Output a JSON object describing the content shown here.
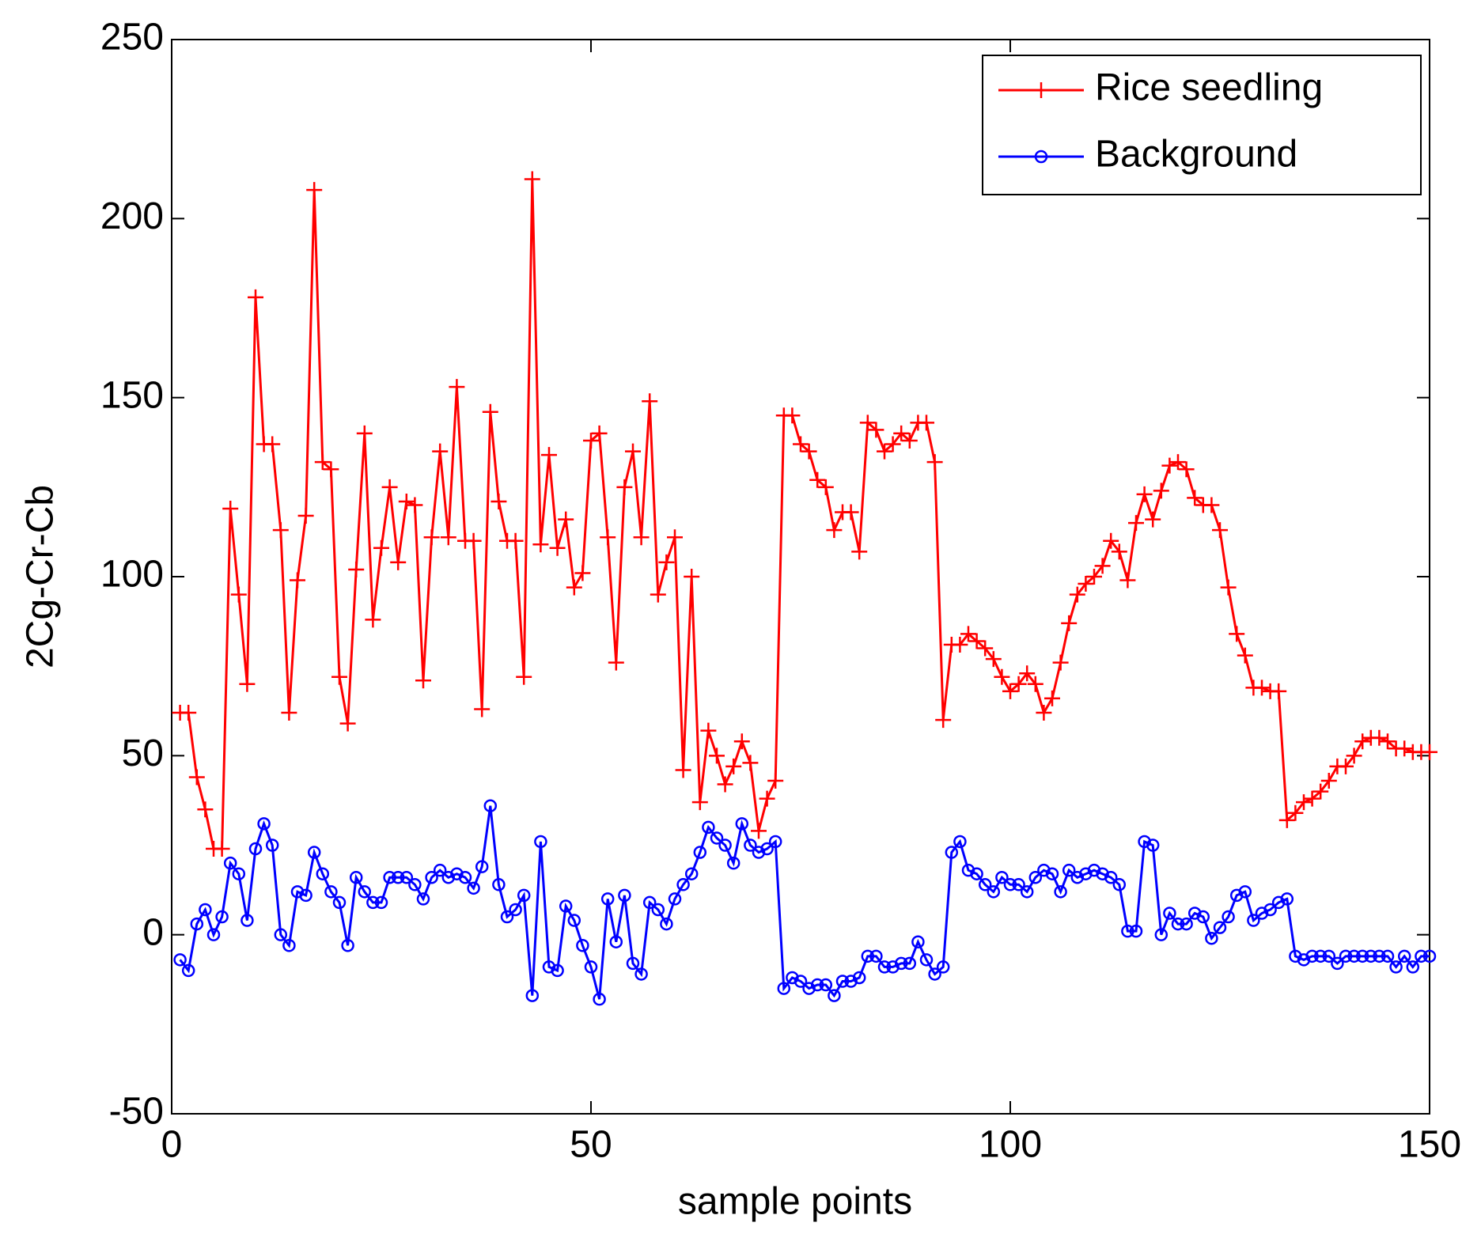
{
  "chart_data": {
    "type": "line",
    "xlabel": "sample points",
    "ylabel": "2Cg-Cr-Cb",
    "xlim": [
      0,
      150
    ],
    "ylim": [
      -50,
      250
    ],
    "xticks": [
      0,
      50,
      100,
      150
    ],
    "yticks": [
      -50,
      0,
      50,
      100,
      150,
      200,
      250
    ],
    "legend": "upper right",
    "x": [
      1,
      2,
      3,
      4,
      5,
      6,
      7,
      8,
      9,
      10,
      11,
      12,
      13,
      14,
      15,
      16,
      17,
      18,
      19,
      20,
      21,
      22,
      23,
      24,
      25,
      26,
      27,
      28,
      29,
      30,
      31,
      32,
      33,
      34,
      35,
      36,
      37,
      38,
      39,
      40,
      41,
      42,
      43,
      44,
      45,
      46,
      47,
      48,
      49,
      50,
      51,
      52,
      53,
      54,
      55,
      56,
      57,
      58,
      59,
      60,
      61,
      62,
      63,
      64,
      65,
      66,
      67,
      68,
      69,
      70,
      71,
      72,
      73,
      74,
      75,
      76,
      77,
      78,
      79,
      80,
      81,
      82,
      83,
      84,
      85,
      86,
      87,
      88,
      89,
      90,
      91,
      92,
      93,
      94,
      95,
      96,
      97,
      98,
      99,
      100,
      101,
      102,
      103,
      104,
      105,
      106,
      107,
      108,
      109,
      110,
      111,
      112,
      113,
      114,
      115,
      116,
      117,
      118,
      119,
      120,
      121,
      122,
      123,
      124,
      125,
      126,
      127,
      128,
      129,
      130,
      131,
      132,
      133,
      134,
      135,
      136,
      137,
      138,
      139,
      140,
      141,
      142,
      143,
      144,
      145,
      146,
      147,
      148,
      149,
      150
    ],
    "series": [
      {
        "name": "Rice seedling",
        "color": "#ff0000",
        "marker": "+",
        "values": [
          62,
          62,
          44,
          35,
          24,
          24,
          119,
          95,
          70,
          178,
          137,
          137,
          113,
          62,
          99,
          117,
          208,
          132,
          130,
          72,
          59,
          102,
          140,
          88,
          108,
          125,
          104,
          121,
          120,
          71,
          111,
          135,
          111,
          153,
          110,
          110,
          63,
          146,
          121,
          110,
          110,
          72,
          211,
          109,
          134,
          108,
          116,
          97,
          101,
          138,
          140,
          111,
          76,
          125,
          135,
          111,
          149,
          95,
          104,
          111,
          46,
          100,
          37,
          57,
          50,
          42,
          47,
          54,
          48,
          29,
          38,
          43,
          145,
          145,
          137,
          135,
          127,
          125,
          113,
          118,
          118,
          107,
          143,
          141,
          135,
          137,
          140,
          138,
          143,
          143,
          132,
          60,
          81,
          81,
          84,
          82,
          80,
          77,
          72,
          68,
          70,
          73,
          70,
          62,
          66,
          76,
          87,
          95,
          98,
          100,
          103,
          110,
          107,
          99,
          115,
          123,
          116,
          124,
          131,
          132,
          130,
          122,
          120,
          120,
          113,
          97,
          84,
          78,
          69,
          69,
          68,
          68,
          32,
          34,
          37,
          38,
          40,
          43,
          47,
          47,
          50,
          54,
          55,
          55,
          54,
          52,
          52,
          51,
          51,
          51
        ]
      },
      {
        "name": "Background",
        "color": "#0000ff",
        "marker": "o",
        "values": [
          -7,
          -10,
          3,
          7,
          0,
          5,
          20,
          17,
          4,
          24,
          31,
          25,
          0,
          -3,
          12,
          11,
          23,
          17,
          12,
          9,
          -3,
          16,
          12,
          9,
          9,
          16,
          16,
          16,
          14,
          10,
          16,
          18,
          16,
          17,
          16,
          13,
          19,
          36,
          14,
          5,
          7,
          11,
          -17,
          26,
          -9,
          -10,
          8,
          4,
          -3,
          -9,
          -18,
          10,
          -2,
          11,
          -8,
          -11,
          9,
          7,
          3,
          10,
          14,
          17,
          23,
          30,
          27,
          25,
          20,
          31,
          25,
          23,
          24,
          26,
          -15,
          -12,
          -13,
          -15,
          -14,
          -14,
          -17,
          -13,
          -13,
          -12,
          -6,
          -6,
          -9,
          -9,
          -8,
          -8,
          -2,
          -7,
          -11,
          -9,
          23,
          26,
          18,
          17,
          14,
          12,
          16,
          14,
          14,
          12,
          16,
          18,
          17,
          12,
          18,
          16,
          17,
          18,
          17,
          16,
          14,
          1,
          1,
          26,
          25,
          0,
          6,
          3,
          3,
          6,
          5,
          -1,
          2,
          5,
          11,
          12,
          4,
          6,
          7,
          9,
          10,
          -6,
          -7,
          -6,
          -6,
          -6,
          -8,
          -6,
          -6,
          -6,
          -6,
          -6,
          -6,
          -9,
          -6,
          -9,
          -6,
          -6
        ]
      }
    ]
  }
}
